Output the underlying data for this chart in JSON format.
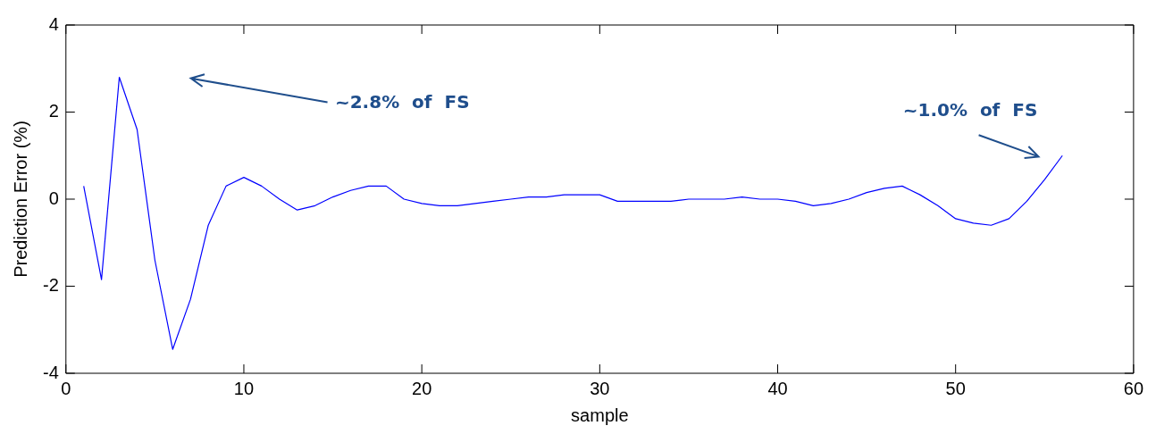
{
  "chart_data": {
    "type": "line",
    "xlabel": "sample",
    "ylabel": "Prediction Error (%)",
    "x": [
      1,
      2,
      3,
      4,
      5,
      6,
      7,
      8,
      9,
      10,
      11,
      12,
      13,
      14,
      15,
      16,
      17,
      18,
      19,
      20,
      21,
      22,
      23,
      24,
      25,
      26,
      27,
      28,
      29,
      30,
      31,
      32,
      33,
      34,
      35,
      36,
      37,
      38,
      39,
      40,
      41,
      42,
      43,
      44,
      45,
      46,
      47,
      48,
      49,
      50,
      51,
      52,
      53,
      54,
      55,
      56
    ],
    "series": [
      {
        "color": "#0000ff",
        "values": [
          0.3,
          -1.85,
          2.8,
          1.6,
          -1.4,
          -3.45,
          -2.3,
          -0.6,
          0.3,
          0.5,
          0.3,
          0.0,
          -0.25,
          -0.15,
          0.05,
          0.2,
          0.3,
          0.3,
          0.0,
          -0.1,
          -0.15,
          -0.15,
          -0.1,
          -0.05,
          0.0,
          0.05,
          0.05,
          0.1,
          0.1,
          0.1,
          -0.05,
          -0.05,
          -0.05,
          -0.05,
          0.0,
          0.0,
          0.0,
          0.05,
          0.0,
          0.0,
          -0.05,
          -0.15,
          -0.1,
          0.0,
          0.15,
          0.25,
          0.3,
          0.1,
          -0.15,
          -0.45,
          -0.55,
          -0.6,
          -0.45,
          -0.05,
          0.45,
          1.0
        ]
      }
    ],
    "xlim": [
      0,
      60
    ],
    "xticks": [
      0,
      10,
      20,
      30,
      40,
      50,
      60
    ],
    "ylim": [
      -4,
      4
    ],
    "yticks": [
      -4,
      -2,
      0,
      2,
      4
    ],
    "grid": false,
    "legend": false,
    "marker": "none",
    "line_style": "solid",
    "annotations": [
      "~2.8%  of  FS",
      "~1.0%  of  FS"
    ]
  }
}
